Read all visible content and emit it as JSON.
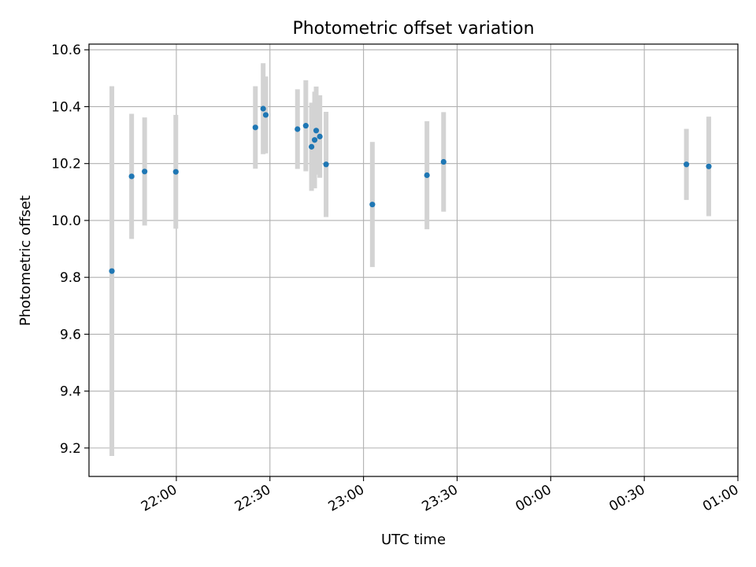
{
  "chart_data": {
    "type": "scatter",
    "title": "Photometric offset variation",
    "xlabel": "UTC time",
    "ylabel": "Photometric offset",
    "xlim": [
      "21:32",
      "01:00"
    ],
    "ylim": [
      9.1,
      10.62
    ],
    "grid": true,
    "x_ticks": [
      "22:00",
      "22:30",
      "23:00",
      "23:30",
      "00:00",
      "00:30",
      "01:00"
    ],
    "y_ticks": [
      9.2,
      9.4,
      9.6,
      9.8,
      10.0,
      10.2,
      10.4,
      10.6
    ],
    "y_tick_labels": [
      "9.2",
      "9.4",
      "9.6",
      "9.8",
      "10.0",
      "10.2",
      "10.4",
      "10.6"
    ],
    "point_color": "#1f77b4",
    "errorbar_color": "#d3d3d3",
    "points": [
      {
        "t": "21:39:20",
        "y": 9.822,
        "err": 0.65
      },
      {
        "t": "21:45:40",
        "y": 10.155,
        "err": 0.22
      },
      {
        "t": "21:49:50",
        "y": 10.172,
        "err": 0.19
      },
      {
        "t": "21:59:50",
        "y": 10.171,
        "err": 0.2
      },
      {
        "t": "22:25:20",
        "y": 10.327,
        "err": 0.145
      },
      {
        "t": "22:27:50",
        "y": 10.393,
        "err": 0.16
      },
      {
        "t": "22:28:40",
        "y": 10.371,
        "err": 0.135
      },
      {
        "t": "22:38:50",
        "y": 10.321,
        "err": 0.14
      },
      {
        "t": "22:41:30",
        "y": 10.333,
        "err": 0.16
      },
      {
        "t": "22:43:20",
        "y": 10.259,
        "err": 0.155
      },
      {
        "t": "22:44:20",
        "y": 10.283,
        "err": 0.17
      },
      {
        "t": "22:44:50",
        "y": 10.316,
        "err": 0.155
      },
      {
        "t": "22:46:00",
        "y": 10.295,
        "err": 0.145
      },
      {
        "t": "22:48:00",
        "y": 10.197,
        "err": 0.185
      },
      {
        "t": "23:02:50",
        "y": 10.056,
        "err": 0.22
      },
      {
        "t": "23:20:20",
        "y": 10.159,
        "err": 0.19
      },
      {
        "t": "23:25:40",
        "y": 10.206,
        "err": 0.175
      },
      {
        "t": "00:43:30",
        "y": 10.197,
        "err": 0.125
      },
      {
        "t": "00:50:40",
        "y": 10.19,
        "err": 0.175
      }
    ]
  }
}
